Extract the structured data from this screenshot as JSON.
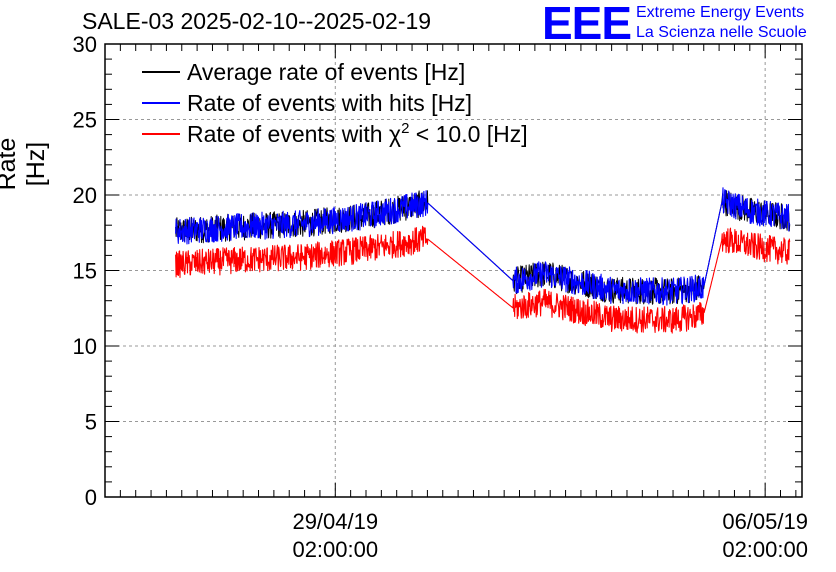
{
  "header": {
    "title": "SALE-03 2025-02-10--2025-02-19",
    "brand_logo": "EEE",
    "brand_line1": "Extreme Energy Events",
    "brand_line2": "La Scienza nelle Scuole",
    "brand_color": "#0000ff"
  },
  "chart_data": {
    "type": "line",
    "ylabel": "Rate [Hz]",
    "xlabel": "",
    "ylim": [
      0,
      30
    ],
    "yticks": [
      0,
      5,
      10,
      15,
      20,
      25,
      30
    ],
    "grid": true,
    "legend_position": "top-left",
    "x_unit": "days since 29/04/19 02:00:00",
    "xlim": [
      -3.75,
      7.6
    ],
    "xticks": [
      {
        "value": 0,
        "date": "29/04/19",
        "time": "02:00:00"
      },
      {
        "value": 7,
        "date": "06/05/19",
        "time": "02:00:00"
      }
    ],
    "x": [
      -2.6,
      -1.5,
      -0.5,
      0.5,
      1.5,
      2.9,
      3.4,
      4.5,
      5.5,
      6.0,
      6.3,
      6.8,
      7.4
    ],
    "series": [
      {
        "name": "Average rate of events [Hz]",
        "color": "#000000",
        "values": [
          17.6,
          17.9,
          18.1,
          18.6,
          19.5,
          14.3,
          14.8,
          13.7,
          13.6,
          13.9,
          19.6,
          18.9,
          18.5
        ]
      },
      {
        "name": "Rate of events with hits [Hz]",
        "color": "#0000ff",
        "values": [
          17.6,
          17.9,
          18.1,
          18.6,
          19.5,
          14.3,
          14.8,
          13.7,
          13.6,
          13.9,
          19.6,
          18.9,
          18.5
        ]
      },
      {
        "name": "Rate of events with χ² < 10.0 [Hz]",
        "color": "#ff0000",
        "values": [
          15.4,
          15.7,
          15.9,
          16.4,
          17.1,
          12.5,
          12.9,
          11.8,
          11.7,
          12.1,
          17.1,
          16.6,
          16.2
        ]
      }
    ],
    "legend": {
      "line1": "Average rate of events [Hz]",
      "line2": "Rate of events with hits [Hz]",
      "line3_prefix": "Rate of events with χ",
      "line3_sup": "2",
      "line3_suffix": " < 10.0 [Hz]"
    }
  }
}
